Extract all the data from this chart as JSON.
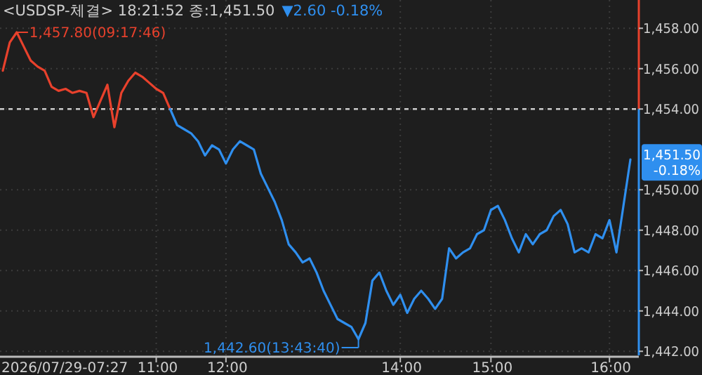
{
  "chart_data": {
    "type": "line",
    "title": "<USDSP-체결> 18:21:52 종:1,451.50",
    "subtitle": "▼2.60 -0.18%",
    "categories": [
      null,
      null,
      null,
      null,
      null,
      null,
      null,
      null,
      null,
      null,
      null,
      null,
      null,
      null,
      null,
      null,
      null,
      null,
      null,
      null,
      null,
      null,
      "11:00",
      null,
      null,
      null,
      null,
      null,
      null,
      null,
      null,
      null,
      "12:00",
      null,
      null,
      null,
      null,
      null,
      null,
      null,
      null,
      null,
      null,
      null,
      null,
      null,
      null,
      null,
      null,
      null,
      null,
      null,
      null,
      null,
      null,
      null,
      null,
      "14:00",
      null,
      null,
      null,
      null,
      null,
      null,
      null,
      null,
      null,
      null,
      null,
      null,
      "15:00",
      null,
      null,
      null,
      null,
      null,
      null,
      null,
      null,
      null,
      null,
      null,
      null,
      null,
      null,
      null,
      null,
      "16:00",
      null,
      null,
      null
    ],
    "series": [
      {
        "color": "#e8412c",
        "values": [
          1455.9,
          1457.3,
          1457.8,
          1457.1,
          1456.4,
          1456.1,
          1455.9,
          1455.1,
          1454.9,
          1455.0,
          1454.8,
          1454.9,
          1454.8,
          1453.6,
          1454.4,
          1455.2,
          1453.1,
          1454.8,
          1455.4,
          1455.8,
          1455.6,
          1455.3,
          1455.0,
          1454.8,
          1454.0,
          null,
          null,
          null,
          null,
          null,
          null,
          null,
          null,
          null,
          null,
          null,
          null,
          null,
          null,
          null,
          null,
          null,
          null,
          null,
          null,
          null,
          null,
          null,
          null,
          null,
          null,
          null,
          null,
          null,
          null,
          null,
          null,
          null,
          null,
          null,
          null,
          null,
          null,
          null,
          null,
          null,
          null,
          null,
          null,
          null,
          null,
          null,
          null,
          null,
          null,
          null,
          null,
          null,
          null,
          null,
          null,
          null,
          null,
          null,
          null,
          null,
          null,
          null,
          null,
          null,
          null
        ]
      },
      {
        "color": "#2f8fef",
        "values": [
          null,
          null,
          null,
          null,
          null,
          null,
          null,
          null,
          null,
          null,
          null,
          null,
          null,
          null,
          null,
          null,
          null,
          null,
          null,
          null,
          null,
          null,
          null,
          null,
          1454.0,
          1453.2,
          1453.0,
          1452.8,
          1452.4,
          1451.7,
          1452.2,
          1452.0,
          1451.3,
          1452.0,
          1452.4,
          1452.2,
          1452.0,
          1450.8,
          1450.1,
          1449.4,
          1448.5,
          1447.3,
          1446.9,
          1446.4,
          1446.6,
          1445.9,
          1445.0,
          1444.3,
          1443.6,
          1443.4,
          1443.2,
          1442.6,
          1443.4,
          1445.5,
          1445.9,
          1445.0,
          1444.3,
          1444.8,
          1443.9,
          1444.6,
          1445.0,
          1444.6,
          1444.1,
          1444.6,
          1447.1,
          1446.6,
          1446.9,
          1447.1,
          1447.8,
          1448.0,
          1449.0,
          1449.2,
          1448.5,
          1447.6,
          1446.9,
          1447.8,
          1447.3,
          1447.8,
          1448.0,
          1448.7,
          1449.0,
          1448.3,
          1446.9,
          1447.1,
          1446.9,
          1447.8,
          1447.6,
          1448.5,
          1446.9,
          1449.2,
          1451.5
        ]
      }
    ],
    "ylim": [
      1441.8,
      1459.4
    ],
    "yticks": [
      {
        "value": 1442,
        "label": "1,442.00"
      },
      {
        "value": 1444,
        "label": "1,444.00"
      },
      {
        "value": 1446,
        "label": "1,446.00"
      },
      {
        "value": 1448,
        "label": "1,448.00"
      },
      {
        "value": 1450,
        "label": "1,450.00"
      },
      {
        "value": 1454,
        "label": "1,454.00"
      },
      {
        "value": 1456,
        "label": "1,456.00"
      },
      {
        "value": 1458,
        "label": "1,458.00"
      }
    ],
    "grid": true,
    "ref_lines": [
      {
        "axis": "y",
        "value": 1454,
        "color": "#cccccc",
        "line_style": "dashed"
      }
    ],
    "annotations": [
      "2026/07/29-07:27",
      "1,457.80(09:17:46)",
      "1,442.60(13:43:40)",
      "1,451.50",
      "-0.18%"
    ]
  }
}
